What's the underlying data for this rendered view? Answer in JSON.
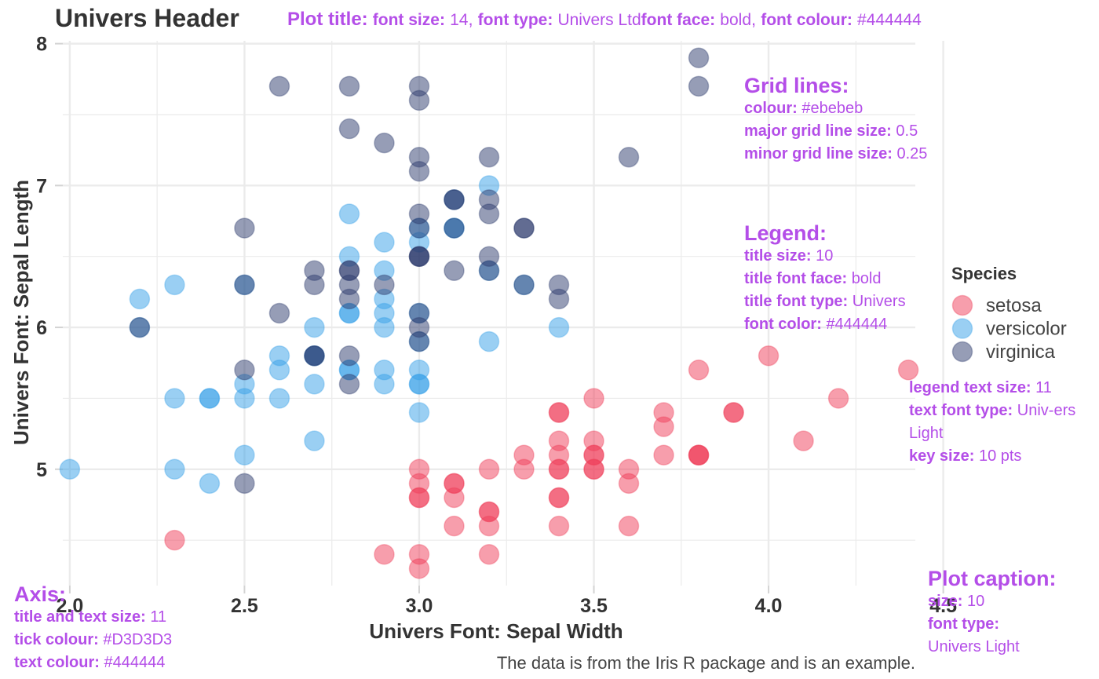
{
  "header": {
    "title": "Univers Header"
  },
  "chart_data": {
    "type": "scatter",
    "title": "Univers Header",
    "xlabel": "Univers Font: Sepal Width",
    "ylabel": "Univers Font: Sepal Length",
    "caption": "The data is from the Iris R package and is an example.",
    "xlim": [
      1.98,
      4.42
    ],
    "ylim": [
      4.18,
      8.02
    ],
    "x_ticks": [
      "2.0",
      "2.5",
      "3.0",
      "3.5",
      "4.0",
      "4.5"
    ],
    "y_ticks": [
      "5",
      "6",
      "7",
      "8"
    ],
    "grid": true,
    "legend_position": "right",
    "legend_title": "Species",
    "series": [
      {
        "name": "setosa",
        "color": "#ef3e59",
        "points": [
          [
            3.5,
            5.1
          ],
          [
            3.0,
            4.9
          ],
          [
            3.2,
            4.7
          ],
          [
            3.1,
            4.6
          ],
          [
            3.6,
            5.0
          ],
          [
            3.9,
            5.4
          ],
          [
            3.4,
            4.6
          ],
          [
            3.4,
            5.0
          ],
          [
            2.9,
            4.4
          ],
          [
            3.1,
            4.9
          ],
          [
            3.7,
            5.4
          ],
          [
            3.4,
            4.8
          ],
          [
            3.0,
            4.8
          ],
          [
            3.0,
            4.3
          ],
          [
            4.0,
            5.8
          ],
          [
            4.4,
            5.7
          ],
          [
            3.9,
            5.4
          ],
          [
            3.5,
            5.1
          ],
          [
            3.8,
            5.7
          ],
          [
            3.8,
            5.1
          ],
          [
            3.4,
            5.4
          ],
          [
            3.7,
            5.1
          ],
          [
            3.6,
            4.6
          ],
          [
            3.3,
            5.1
          ],
          [
            3.4,
            4.8
          ],
          [
            3.0,
            5.0
          ],
          [
            3.4,
            5.0
          ],
          [
            3.5,
            5.2
          ],
          [
            3.4,
            5.2
          ],
          [
            3.2,
            4.7
          ],
          [
            3.1,
            4.8
          ],
          [
            3.4,
            5.4
          ],
          [
            4.1,
            5.2
          ],
          [
            4.2,
            5.5
          ],
          [
            3.1,
            4.9
          ],
          [
            3.2,
            5.0
          ],
          [
            3.5,
            5.5
          ],
          [
            3.6,
            4.9
          ],
          [
            3.0,
            4.4
          ],
          [
            3.4,
            5.1
          ],
          [
            3.5,
            5.0
          ],
          [
            2.3,
            4.5
          ],
          [
            3.2,
            4.4
          ],
          [
            3.5,
            5.0
          ],
          [
            3.8,
            5.1
          ],
          [
            3.0,
            4.8
          ],
          [
            3.8,
            5.1
          ],
          [
            3.2,
            4.6
          ],
          [
            3.7,
            5.3
          ],
          [
            3.3,
            5.0
          ]
        ]
      },
      {
        "name": "versicolor",
        "color": "#36a0e8",
        "points": [
          [
            3.2,
            7.0
          ],
          [
            3.2,
            6.4
          ],
          [
            3.1,
            6.9
          ],
          [
            2.3,
            5.5
          ],
          [
            2.8,
            6.5
          ],
          [
            2.8,
            5.7
          ],
          [
            3.3,
            6.3
          ],
          [
            2.4,
            4.9
          ],
          [
            2.9,
            6.6
          ],
          [
            2.7,
            5.2
          ],
          [
            2.0,
            5.0
          ],
          [
            3.0,
            5.9
          ],
          [
            2.2,
            6.0
          ],
          [
            2.9,
            6.1
          ],
          [
            2.9,
            5.6
          ],
          [
            3.1,
            6.7
          ],
          [
            3.0,
            5.6
          ],
          [
            2.7,
            5.8
          ],
          [
            2.2,
            6.2
          ],
          [
            2.5,
            5.6
          ],
          [
            3.2,
            5.9
          ],
          [
            2.8,
            6.1
          ],
          [
            2.5,
            6.3
          ],
          [
            2.8,
            6.1
          ],
          [
            2.9,
            6.4
          ],
          [
            3.0,
            6.6
          ],
          [
            2.8,
            6.8
          ],
          [
            3.0,
            6.7
          ],
          [
            2.9,
            6.0
          ],
          [
            2.6,
            5.7
          ],
          [
            2.4,
            5.5
          ],
          [
            2.4,
            5.5
          ],
          [
            2.7,
            5.8
          ],
          [
            2.7,
            6.0
          ],
          [
            3.0,
            5.4
          ],
          [
            3.4,
            6.0
          ],
          [
            3.1,
            6.7
          ],
          [
            2.3,
            6.3
          ],
          [
            3.0,
            5.6
          ],
          [
            2.5,
            5.5
          ],
          [
            2.6,
            5.5
          ],
          [
            3.0,
            6.1
          ],
          [
            2.6,
            5.8
          ],
          [
            2.3,
            5.0
          ],
          [
            2.7,
            5.6
          ],
          [
            3.0,
            5.7
          ],
          [
            2.9,
            5.7
          ],
          [
            2.9,
            6.2
          ],
          [
            2.5,
            5.1
          ],
          [
            2.8,
            5.7
          ]
        ]
      },
      {
        "name": "virginica",
        "color": "#2e3b6e",
        "points": [
          [
            3.3,
            6.3
          ],
          [
            2.7,
            5.8
          ],
          [
            3.0,
            7.1
          ],
          [
            2.9,
            6.3
          ],
          [
            3.0,
            6.5
          ],
          [
            3.0,
            7.6
          ],
          [
            2.5,
            4.9
          ],
          [
            2.9,
            7.3
          ],
          [
            2.5,
            6.7
          ],
          [
            3.6,
            7.2
          ],
          [
            3.2,
            6.5
          ],
          [
            2.7,
            6.4
          ],
          [
            3.0,
            6.8
          ],
          [
            2.5,
            5.7
          ],
          [
            2.8,
            5.8
          ],
          [
            3.2,
            6.4
          ],
          [
            3.0,
            6.5
          ],
          [
            3.8,
            7.7
          ],
          [
            2.6,
            7.7
          ],
          [
            2.2,
            6.0
          ],
          [
            3.2,
            6.9
          ],
          [
            2.8,
            5.6
          ],
          [
            2.8,
            7.7
          ],
          [
            2.7,
            6.3
          ],
          [
            3.3,
            6.7
          ],
          [
            3.2,
            7.2
          ],
          [
            2.8,
            6.2
          ],
          [
            3.0,
            6.1
          ],
          [
            2.8,
            6.4
          ],
          [
            3.0,
            7.2
          ],
          [
            2.8,
            7.4
          ],
          [
            3.8,
            7.9
          ],
          [
            2.8,
            6.4
          ],
          [
            2.8,
            6.3
          ],
          [
            2.6,
            6.1
          ],
          [
            3.0,
            7.7
          ],
          [
            3.4,
            6.3
          ],
          [
            3.1,
            6.4
          ],
          [
            3.0,
            6.0
          ],
          [
            3.1,
            6.9
          ],
          [
            3.1,
            6.7
          ],
          [
            3.1,
            6.9
          ],
          [
            2.7,
            5.8
          ],
          [
            3.2,
            6.8
          ],
          [
            3.3,
            6.7
          ],
          [
            3.0,
            6.7
          ],
          [
            2.5,
            6.3
          ],
          [
            3.0,
            6.5
          ],
          [
            3.4,
            6.2
          ],
          [
            3.0,
            5.9
          ]
        ]
      }
    ]
  },
  "annotations": {
    "plot_title": {
      "heading": "Plot title:",
      "size_label": "font size:",
      "size_value": "14",
      "type_label": "font type:",
      "type_value": "Univers Ltd",
      "face_label": "font face:",
      "face_value": "bold",
      "colour_label": "font colour:",
      "colour_value": "#444444"
    },
    "grid": {
      "heading": "Grid lines:",
      "colour_label": "colour:",
      "colour_value": "#ebebeb",
      "major_label": "major grid line size:",
      "major_value": "0.5",
      "minor_label": "minor grid line size:",
      "minor_value": "0.25"
    },
    "legend": {
      "heading": "Legend:",
      "size_label": "title size:",
      "size_value": "10",
      "face_label": "title font face:",
      "face_value": "bold",
      "type_label": "title font type:",
      "type_value": "Univers",
      "color_label": "font color:",
      "color_value": "#444444"
    },
    "legend_text": {
      "size_label": "legend text size:",
      "size_value": "11",
      "type_label": "text font type:",
      "type_value": "Univ-ers Light",
      "key_label": "key size:",
      "key_value": "10 pts"
    },
    "axis": {
      "heading": "Axis:",
      "size_label": "title and text size:",
      "size_value": "11",
      "tick_label": "tick colour:",
      "tick_value": "#D3D3D3",
      "text_label": "text colour:",
      "text_value": "#444444"
    },
    "caption": {
      "heading": "Plot caption:",
      "size_label": "size:",
      "size_value": "10",
      "type_label": "font type:",
      "type_value": "Univers Light"
    }
  },
  "colors": {
    "annotation": "#b44ee8",
    "text": "#444444",
    "grid": "#ebebeb",
    "tick": "#D3D3D3"
  }
}
